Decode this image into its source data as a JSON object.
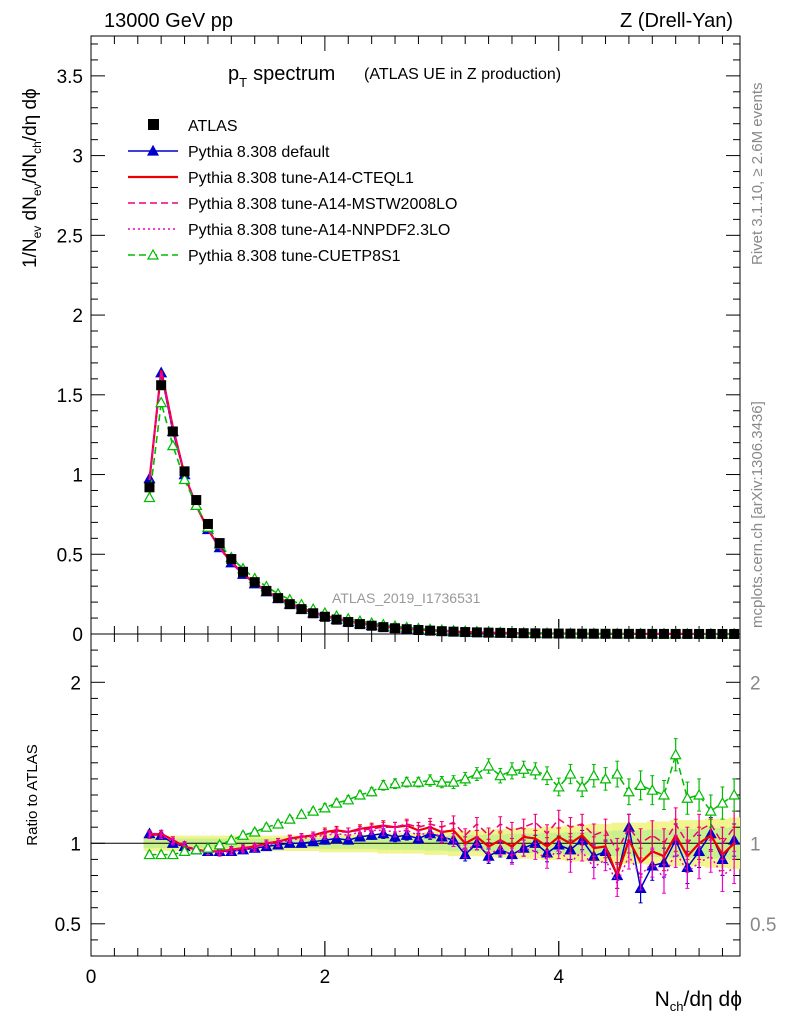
{
  "header": {
    "left": "13000 GeV pp",
    "right": "Z (Drell-Yan)"
  },
  "side": {
    "rivet": "Rivet 3.1.10, ≥ 2.6M events",
    "mcplots": "mcplots.cern.ch [arXiv:1306.3436]"
  },
  "analysis_tag": "ATLAS_2019_I1736531",
  "chart_data": {
    "type": "line",
    "title_main": "p",
    "title_sub": "T",
    "title_main2": "spectrum",
    "title_extra": "(ATLAS UE in Z production)",
    "ylabel": "1/N_ev dN_ev/dN_ch/dη dϕ",
    "ylabel_parts": {
      "p1": "1/N",
      "s1": "ev",
      "p2": " dN",
      "s2": "ev",
      "p3": "/dN",
      "s3": "ch",
      "p4": "/dη dϕ"
    },
    "xlabel_parts": {
      "p1": "N",
      "s1": "ch",
      "p2": "/dη dϕ"
    },
    "ratio_ylabel": "Ratio to ATLAS",
    "xlim": [
      0,
      5.55
    ],
    "ylim": [
      0,
      3.75
    ],
    "ratio_ylim": [
      0.3,
      2.3
    ],
    "main_yticks": [
      0,
      0.5,
      1,
      1.5,
      2,
      2.5,
      3,
      3.5
    ],
    "main_ytick_labels": [
      "0",
      "0.5",
      "1",
      "1.5",
      "2",
      "2.5",
      "3",
      "3.5"
    ],
    "ratio_yticks": [
      0.5,
      1,
      2
    ],
    "ratio_ytick_labels": [
      "0.5",
      "1",
      "2"
    ],
    "xticks": [
      0,
      2,
      4
    ],
    "xtick_labels": [
      "0",
      "2",
      "4"
    ],
    "x": [
      0.5,
      0.6,
      0.7,
      0.8,
      0.9,
      1.0,
      1.1,
      1.2,
      1.3,
      1.4,
      1.5,
      1.6,
      1.7,
      1.8,
      1.9,
      2.0,
      2.1,
      2.2,
      2.3,
      2.4,
      2.5,
      2.6,
      2.7,
      2.8,
      2.9,
      3.0,
      3.1,
      3.2,
      3.3,
      3.4,
      3.5,
      3.6,
      3.7,
      3.8,
      3.9,
      4.0,
      4.1,
      4.2,
      4.3,
      4.4,
      4.5,
      4.6,
      4.7,
      4.8,
      4.9,
      5.0,
      5.1,
      5.2,
      5.3,
      5.4,
      5.5
    ],
    "data_values": [
      0.92,
      1.56,
      1.27,
      1.02,
      0.84,
      0.69,
      0.57,
      0.47,
      0.39,
      0.325,
      0.27,
      0.225,
      0.187,
      0.156,
      0.13,
      0.108,
      0.09,
      0.075,
      0.062,
      0.052,
      0.043,
      0.036,
      0.03,
      0.025,
      0.021,
      0.0175,
      0.0146,
      0.0122,
      0.0102,
      0.0085,
      0.0071,
      0.0059,
      0.0049,
      0.0041,
      0.0034,
      0.0028,
      0.0023,
      0.0019,
      0.0016,
      0.0013,
      0.0011,
      0.0009,
      0.00075,
      0.00062,
      0.00052,
      0.00043,
      0.00036,
      0.0003,
      0.00025,
      0.0002,
      0.00017
    ],
    "data_rel_err": [
      0.03,
      0.03,
      0.03,
      0.03,
      0.03,
      0.03,
      0.03,
      0.03,
      0.03,
      0.03,
      0.03,
      0.03,
      0.03,
      0.03,
      0.03,
      0.035,
      0.035,
      0.035,
      0.035,
      0.035,
      0.04,
      0.04,
      0.04,
      0.04,
      0.045,
      0.045,
      0.05,
      0.05,
      0.05,
      0.055,
      0.055,
      0.06,
      0.06,
      0.06,
      0.065,
      0.065,
      0.07,
      0.07,
      0.075,
      0.075,
      0.08,
      0.08,
      0.08,
      0.085,
      0.085,
      0.09,
      0.09,
      0.09,
      0.095,
      0.095,
      0.1
    ],
    "legend": [
      {
        "name": "ATLAS",
        "color": "#000000"
      },
      {
        "name": "Pythia 8.308 default",
        "color": "#0000cc"
      },
      {
        "name": "Pythia 8.308 tune-A14-CTEQL1",
        "color": "#ee0000"
      },
      {
        "name": "Pythia 8.308 tune-A14-MSTW2008LO",
        "color": "#ee0077"
      },
      {
        "name": "Pythia 8.308 tune-A14-NNPDF2.3LO",
        "color": "#ee00cc"
      },
      {
        "name": "Pythia 8.308 tune-CUETP8S1",
        "color": "#00bb00"
      }
    ],
    "series": [
      {
        "name": "Pythia 8.308 default",
        "color": "#0000cc",
        "style": "solid",
        "marker": "triangle-filled",
        "ratio": [
          1.06,
          1.05,
          1.0,
          0.98,
          0.96,
          0.95,
          0.95,
          0.95,
          0.96,
          0.97,
          0.98,
          0.99,
          1.0,
          1.0,
          1.01,
          1.02,
          1.03,
          1.02,
          1.04,
          1.05,
          1.06,
          1.04,
          1.05,
          1.03,
          1.06,
          1.04,
          1.02,
          0.93,
          1.0,
          0.92,
          0.96,
          0.93,
          0.97,
          1.0,
          0.94,
          0.99,
          0.96,
          1.02,
          0.92,
          0.95,
          0.8,
          1.1,
          0.72,
          0.86,
          0.88,
          1.02,
          0.85,
          0.95,
          1.06,
          0.9,
          1.02
        ],
        "ratio_err": [
          0.02,
          0.02,
          0.02,
          0.02,
          0.02,
          0.02,
          0.02,
          0.02,
          0.02,
          0.02,
          0.02,
          0.02,
          0.02,
          0.02,
          0.02,
          0.025,
          0.025,
          0.025,
          0.025,
          0.025,
          0.03,
          0.03,
          0.03,
          0.03,
          0.035,
          0.035,
          0.04,
          0.04,
          0.04,
          0.045,
          0.045,
          0.05,
          0.05,
          0.05,
          0.055,
          0.055,
          0.06,
          0.06,
          0.07,
          0.07,
          0.08,
          0.08,
          0.09,
          0.09,
          0.09,
          0.1,
          0.1,
          0.1,
          0.1,
          0.1,
          0.1
        ]
      },
      {
        "name": "Pythia 8.308 tune-A14-CTEQL1",
        "color": "#ee0000",
        "style": "solid",
        "marker": "none",
        "ratio": [
          1.05,
          1.06,
          1.02,
          0.98,
          0.96,
          0.95,
          0.95,
          0.96,
          0.97,
          0.98,
          1.0,
          1.01,
          1.03,
          1.04,
          1.05,
          1.07,
          1.08,
          1.07,
          1.09,
          1.1,
          1.11,
          1.1,
          1.11,
          1.08,
          1.1,
          1.07,
          1.08,
          1.0,
          1.04,
          0.98,
          1.02,
          0.98,
          1.04,
          1.03,
          0.98,
          1.04,
          1.0,
          1.05,
          0.97,
          0.98,
          0.8,
          1.02,
          0.88,
          0.95,
          0.92,
          1.05,
          0.92,
          1.0,
          1.05,
          0.93,
          1.0
        ],
        "ratio_err": [
          0.02,
          0.02,
          0.02,
          0.02,
          0.02,
          0.02,
          0.02,
          0.02,
          0.02,
          0.02,
          0.02,
          0.02,
          0.02,
          0.02,
          0.02,
          0.025,
          0.025,
          0.025,
          0.025,
          0.025,
          0.03,
          0.03,
          0.03,
          0.03,
          0.035,
          0.035,
          0.04,
          0.04,
          0.04,
          0.045,
          0.045,
          0.05,
          0.05,
          0.05,
          0.055,
          0.055,
          0.06,
          0.06,
          0.07,
          0.07,
          0.08,
          0.08,
          0.09,
          0.09,
          0.09,
          0.1,
          0.1,
          0.1,
          0.1,
          0.1,
          0.1
        ]
      },
      {
        "name": "Pythia 8.308 tune-A14-MSTW2008LO",
        "color": "#ee0077",
        "style": "dashed",
        "marker": "none",
        "ratio": [
          1.06,
          1.06,
          1.02,
          0.99,
          0.96,
          0.95,
          0.95,
          0.96,
          0.97,
          0.98,
          1.0,
          1.01,
          1.03,
          1.04,
          1.05,
          1.06,
          1.07,
          1.07,
          1.08,
          1.09,
          1.1,
          1.1,
          1.12,
          1.1,
          1.12,
          1.1,
          1.13,
          1.05,
          1.12,
          1.05,
          1.12,
          1.08,
          1.1,
          1.13,
          1.06,
          1.15,
          1.1,
          1.12,
          1.05,
          1.08,
          0.95,
          1.1,
          1.0,
          1.05,
          1.0,
          1.12,
          1.0,
          1.08,
          1.12,
          1.0,
          1.1
        ],
        "ratio_err": [
          0.02,
          0.02,
          0.02,
          0.02,
          0.02,
          0.02,
          0.02,
          0.02,
          0.02,
          0.02,
          0.02,
          0.02,
          0.02,
          0.02,
          0.02,
          0.025,
          0.025,
          0.025,
          0.025,
          0.025,
          0.03,
          0.03,
          0.03,
          0.03,
          0.035,
          0.035,
          0.04,
          0.04,
          0.04,
          0.045,
          0.045,
          0.05,
          0.05,
          0.05,
          0.055,
          0.055,
          0.06,
          0.06,
          0.07,
          0.07,
          0.08,
          0.08,
          0.09,
          0.09,
          0.09,
          0.1,
          0.1,
          0.1,
          0.1,
          0.1,
          0.1
        ]
      },
      {
        "name": "Pythia 8.308 tune-A14-NNPDF2.3LO",
        "color": "#ee00cc",
        "style": "dotted",
        "marker": "none",
        "ratio": [
          1.05,
          1.05,
          1.01,
          0.98,
          0.96,
          0.95,
          0.94,
          0.95,
          0.96,
          0.97,
          0.99,
          1.0,
          1.02,
          1.03,
          1.04,
          1.05,
          1.06,
          1.05,
          1.07,
          1.08,
          1.08,
          1.07,
          1.08,
          1.05,
          1.07,
          1.04,
          1.02,
          0.95,
          1.0,
          0.93,
          0.97,
          0.92,
          0.97,
          0.95,
          0.9,
          0.96,
          0.88,
          0.95,
          0.85,
          0.9,
          0.75,
          0.92,
          0.8,
          0.88,
          0.78,
          0.95,
          0.82,
          0.88,
          0.92,
          0.8,
          0.85
        ],
        "ratio_err": [
          0.02,
          0.02,
          0.02,
          0.02,
          0.02,
          0.02,
          0.02,
          0.02,
          0.02,
          0.02,
          0.02,
          0.02,
          0.02,
          0.02,
          0.02,
          0.025,
          0.025,
          0.025,
          0.025,
          0.025,
          0.03,
          0.03,
          0.03,
          0.03,
          0.035,
          0.035,
          0.04,
          0.04,
          0.04,
          0.045,
          0.045,
          0.05,
          0.05,
          0.05,
          0.055,
          0.055,
          0.06,
          0.06,
          0.07,
          0.07,
          0.08,
          0.08,
          0.09,
          0.09,
          0.09,
          0.1,
          0.1,
          0.1,
          0.1,
          0.1,
          0.1
        ]
      },
      {
        "name": "Pythia 8.308 tune-CUETP8S1",
        "color": "#00bb00",
        "style": "dashed",
        "marker": "triangle-open",
        "ratio": [
          0.93,
          0.93,
          0.93,
          0.95,
          0.96,
          0.97,
          0.99,
          1.02,
          1.05,
          1.07,
          1.1,
          1.12,
          1.15,
          1.18,
          1.2,
          1.22,
          1.25,
          1.27,
          1.3,
          1.32,
          1.36,
          1.37,
          1.38,
          1.38,
          1.39,
          1.38,
          1.38,
          1.4,
          1.43,
          1.48,
          1.42,
          1.45,
          1.46,
          1.45,
          1.42,
          1.35,
          1.43,
          1.35,
          1.42,
          1.4,
          1.43,
          1.32,
          1.36,
          1.33,
          1.3,
          1.55,
          1.28,
          1.3,
          1.2,
          1.25,
          1.3
        ],
        "ratio_err": [
          0.02,
          0.02,
          0.02,
          0.02,
          0.02,
          0.02,
          0.02,
          0.02,
          0.02,
          0.02,
          0.02,
          0.02,
          0.02,
          0.02,
          0.02,
          0.025,
          0.025,
          0.025,
          0.025,
          0.025,
          0.03,
          0.03,
          0.03,
          0.03,
          0.035,
          0.035,
          0.04,
          0.04,
          0.04,
          0.045,
          0.045,
          0.05,
          0.05,
          0.05,
          0.055,
          0.055,
          0.06,
          0.06,
          0.07,
          0.07,
          0.08,
          0.08,
          0.09,
          0.09,
          0.09,
          0.1,
          0.1,
          0.1,
          0.1,
          0.1,
          0.1
        ]
      }
    ]
  }
}
